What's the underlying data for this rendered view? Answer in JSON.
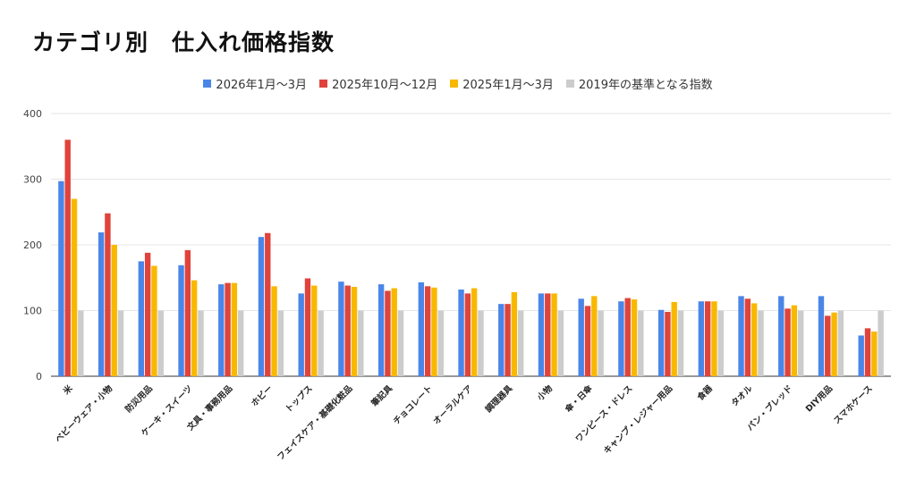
{
  "chart_data": {
    "type": "bar",
    "title": "カテゴリ別　仕入れ価格指数",
    "xlabel": "",
    "ylabel": "",
    "ylim": [
      0,
      400
    ],
    "yticks": [
      0,
      100,
      200,
      300,
      400
    ],
    "grid": true,
    "legend_position": "top-center",
    "categories": [
      "米",
      "ベビーウェア・小物",
      "防災用品",
      "ケーキ・スイーツ",
      "文具・事務用品",
      "ホビー",
      "トップス",
      "フェイスケア・基礎化粧品",
      "筆記具",
      "チョコレート",
      "オーラルケア",
      "調理器具",
      "小物",
      "傘・日傘",
      "ワンピース・ドレス",
      "キャンプ・レジャー用品",
      "食器",
      "タオル",
      "パン・ブレッド",
      "DIY用品",
      "スマホケース"
    ],
    "series": [
      {
        "name": "2026年1月〜3月",
        "color": "#4a86e8",
        "values": [
          297,
          219,
          175,
          169,
          140,
          212,
          126,
          144,
          140,
          143,
          132,
          110,
          126,
          118,
          114,
          101,
          114,
          122,
          122,
          122,
          62
        ]
      },
      {
        "name": "2025年10月〜12月",
        "color": "#e0433b",
        "values": [
          360,
          248,
          188,
          192,
          142,
          218,
          149,
          138,
          130,
          137,
          126,
          110,
          126,
          107,
          119,
          98,
          114,
          118,
          103,
          92,
          73
        ]
      },
      {
        "name": "2025年1月〜3月",
        "color": "#f9b800",
        "values": [
          270,
          200,
          168,
          146,
          142,
          137,
          138,
          136,
          134,
          135,
          134,
          128,
          126,
          122,
          117,
          113,
          114,
          111,
          108,
          97,
          68
        ]
      },
      {
        "name": "2019年の基準となる指数",
        "color": "#cccccc",
        "values": [
          100,
          100,
          100,
          100,
          100,
          100,
          100,
          100,
          100,
          100,
          100,
          100,
          100,
          100,
          100,
          100,
          100,
          100,
          100,
          100,
          100
        ]
      }
    ]
  }
}
